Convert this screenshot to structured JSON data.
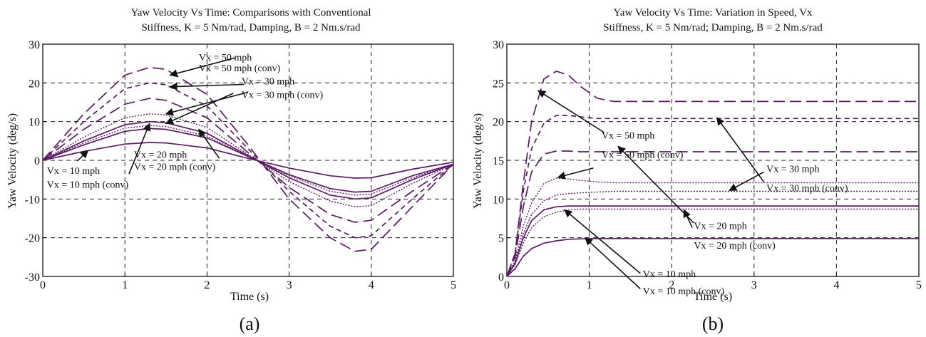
{
  "panels": [
    {
      "label": "(a)",
      "title_line1": "Yaw Velocity Vs Time: Comparisons with Conventional",
      "title_line2": "Stiffness, K = 5 Nm/rad, Damping, B = 2 Nm.s/rad",
      "xlabel": "Time (s)",
      "ylabel": "Yaw Velocity (deg/s)"
    },
    {
      "label": "(b)",
      "title_line1": "Yaw Velocity Vs Time: Variation in Speed, Vx",
      "title_line2": "Stiffness, K = 5 Nm/rad; Damping, B = 2 Nm.s/rad",
      "xlabel": "Time (s)",
      "ylabel": "Yaw Velocity (deg/s)"
    }
  ],
  "chart_data": [
    {
      "type": "line",
      "title": "Yaw Velocity Vs Time: Comparisons with Conventional Stiffness, K = 5 Nm/rad, Damping, B = 2 Nm.s/rad",
      "xlabel": "Time (s)",
      "ylabel": "Yaw Velocity (deg/s)",
      "xlim": [
        0,
        5
      ],
      "ylim": [
        -30,
        30
      ],
      "xticks": [
        0,
        1,
        2,
        3,
        4,
        5
      ],
      "yticks": [
        -30,
        -20,
        -10,
        0,
        10,
        20,
        30
      ],
      "grid": true,
      "color": "#5b1b63",
      "series": [
        {
          "name": "Vx = 50 mph",
          "style": "longdash",
          "x": [
            0,
            0.5,
            1,
            1.3,
            1.5,
            2,
            2.5,
            3,
            3.5,
            3.8,
            4,
            4.5,
            5
          ],
          "y": [
            0,
            12,
            22,
            24,
            23.5,
            17,
            4,
            -10,
            -20,
            -23.5,
            -23,
            -12,
            -1
          ]
        },
        {
          "name": "Vx = 50 mph (conv)",
          "style": "dash",
          "x": [
            0,
            0.5,
            1,
            1.3,
            1.5,
            2,
            2.5,
            3,
            3.5,
            3.8,
            4,
            4.5,
            5
          ],
          "y": [
            0,
            10,
            18.5,
            20,
            19.5,
            14,
            3,
            -8,
            -17,
            -20,
            -19.5,
            -10,
            -1
          ]
        },
        {
          "name": "Vx = 30 mph",
          "style": "longdash",
          "x": [
            0,
            0.5,
            1,
            1.3,
            1.5,
            2,
            2.5,
            3,
            3.5,
            3.8,
            4,
            4.5,
            5
          ],
          "y": [
            0,
            8,
            14.5,
            16,
            15.5,
            11,
            2,
            -7,
            -14,
            -16,
            -15.5,
            -8,
            -1
          ]
        },
        {
          "name": "Vx = 30 mph (conv)",
          "style": "dot",
          "x": [
            0,
            0.5,
            1,
            1.3,
            1.5,
            2,
            2.5,
            3,
            3.5,
            3.8,
            4,
            4.5,
            5
          ],
          "y": [
            0,
            6,
            11,
            12,
            11.7,
            8.5,
            1.5,
            -5.5,
            -10.5,
            -12,
            -11.7,
            -6,
            -1
          ]
        },
        {
          "name": "Vx = 20 mph",
          "style": "solid",
          "x": [
            0,
            0.5,
            1,
            1.3,
            1.5,
            2,
            2.5,
            3,
            3.5,
            3.8,
            4,
            4.5,
            5
          ],
          "y": [
            0,
            5,
            9.2,
            10,
            9.7,
            7,
            1.2,
            -4.5,
            -9,
            -10,
            -9.7,
            -5,
            -1
          ]
        },
        {
          "name": "Vx = 20 mph (conv)",
          "style": "dot",
          "x": [
            0,
            0.5,
            1,
            1.3,
            1.5,
            2,
            2.5,
            3,
            3.5,
            3.8,
            4,
            4.5,
            5
          ],
          "y": [
            0,
            4.5,
            8.3,
            9,
            8.7,
            6.3,
            1,
            -4,
            -8,
            -9,
            -8.7,
            -4.5,
            -1
          ]
        },
        {
          "name": "Vx = 10 mph",
          "style": "solid",
          "x": [
            0,
            0.5,
            1,
            1.3,
            1.5,
            2,
            2.5,
            3,
            3.5,
            3.8,
            4,
            4.5,
            5
          ],
          "y": [
            0,
            4,
            7.5,
            8.2,
            8,
            5.8,
            1,
            -3.7,
            -7.3,
            -8.2,
            -8,
            -4,
            -1
          ]
        },
        {
          "name": "Vx = 10 mph (conv)",
          "style": "solid",
          "x": [
            0,
            0.5,
            1,
            1.3,
            1.5,
            2,
            2.5,
            3,
            3.5,
            3.8,
            4,
            4.5,
            5
          ],
          "y": [
            0,
            2.3,
            4.2,
            4.6,
            4.5,
            3.2,
            0.5,
            -2,
            -4,
            -4.6,
            -4.5,
            -2.3,
            -0.5
          ]
        }
      ],
      "annotations": [
        {
          "text": "Vx = 50 mph",
          "tx": 1.9,
          "ty": 25.8
        },
        {
          "text": "Vx = 50 mph (conv)",
          "tx": 1.9,
          "ty": 23.0,
          "arrow_from": [
            2.35,
            26.5
          ],
          "arrow_to": [
            1.55,
            22
          ]
        },
        {
          "text": "Vx = 30 mph",
          "tx": 2.42,
          "ty": 19.6,
          "arrow_from": [
            2.5,
            17.6
          ],
          "arrow_to": [
            1.5,
            12
          ]
        },
        {
          "text": "Vx = 30 mph (conv)",
          "tx": 2.42,
          "ty": 16.1,
          "arrow_from": [
            2.45,
            19.6
          ],
          "arrow_to": [
            1.55,
            19
          ]
        },
        {
          "text": "Vx = 20 mph",
          "tx": 1.11,
          "ty": 0.6,
          "arrow_from": [
            2.32,
            17.3
          ],
          "arrow_to": [
            1.5,
            9.5
          ]
        },
        {
          "text": "Vx = 20 mph (conv)",
          "tx": 1.11,
          "ty": -2.5,
          "arrow_from": [
            1.05,
            -3.5
          ],
          "arrow_to": [
            1.3,
            9.5
          ]
        },
        {
          "text": "Vx = 10 mph",
          "tx": 0.05,
          "ty": -3.5,
          "arrow_from": [
            2.15,
            0.5
          ],
          "arrow_to": [
            1.9,
            8
          ]
        },
        {
          "text": "Vx = 10 mph (conv)",
          "tx": 0.05,
          "ty": -7.1,
          "arrow_from": [
            0.42,
            -0.2
          ],
          "arrow_to": [
            0.55,
            2.5
          ]
        }
      ]
    },
    {
      "type": "line",
      "title": "Yaw Velocity Vs Time: Variation in Speed, Vx Stiffness, K = 5 Nm/rad; Damping, B = 2 Nm.s/rad",
      "xlabel": "Time (s)",
      "ylabel": "Yaw Velocity (deg/s)",
      "xlim": [
        0,
        5
      ],
      "ylim": [
        0,
        30
      ],
      "xticks": [
        0,
        1,
        2,
        3,
        4,
        5
      ],
      "yticks": [
        0,
        5,
        10,
        15,
        20,
        25,
        30
      ],
      "grid": true,
      "color": "#5b1b63",
      "series": [
        {
          "name": "Vx = 50 mph",
          "style": "longdash",
          "x": [
            0,
            0.1,
            0.2,
            0.3,
            0.45,
            0.6,
            0.75,
            0.9,
            1.1,
            1.3,
            1.6,
            2,
            3,
            4,
            5
          ],
          "y": [
            0,
            3,
            12,
            20,
            25.5,
            26.5,
            26,
            24.5,
            23,
            22.6,
            22.6,
            22.6,
            22.6,
            22.6,
            22.6
          ]
        },
        {
          "name": "Vx = 50 mph (conv)",
          "style": "dash",
          "x": [
            0,
            0.1,
            0.2,
            0.3,
            0.45,
            0.6,
            0.75,
            0.9,
            1.1,
            1.3,
            1.6,
            2,
            3,
            4,
            5
          ],
          "y": [
            0,
            3,
            11,
            16.5,
            19.8,
            20.8,
            20.8,
            20.6,
            20.4,
            20.4,
            20.4,
            20.4,
            20.4,
            20.4,
            20.4
          ]
        },
        {
          "name": "Vx = 30 mph",
          "style": "longdash",
          "x": [
            0,
            0.1,
            0.2,
            0.3,
            0.45,
            0.6,
            0.75,
            0.9,
            1.1,
            1.3,
            1.6,
            2,
            3,
            4,
            5
          ],
          "y": [
            0,
            2.5,
            9,
            13.5,
            15.8,
            16.2,
            16.2,
            16.1,
            16.1,
            16.1,
            16.1,
            16.1,
            16.1,
            16.1,
            16.1
          ]
        },
        {
          "name": "Vx = 30 mph (conv)",
          "style": "dot",
          "x": [
            0,
            0.1,
            0.2,
            0.3,
            0.45,
            0.6,
            0.75,
            0.9,
            1.1,
            1.3,
            1.6,
            2,
            3,
            4,
            5
          ],
          "y": [
            0,
            2,
            6.5,
            9.5,
            12,
            12.7,
            12.6,
            12.4,
            12.2,
            12.1,
            12.1,
            12.1,
            12.1,
            12.1,
            12.1
          ]
        },
        {
          "name": "Vx = 20 mph",
          "style": "dot",
          "x": [
            0,
            0.1,
            0.2,
            0.3,
            0.45,
            0.6,
            0.75,
            0.9,
            1.1,
            1.3,
            1.6,
            2,
            3,
            4,
            5
          ],
          "y": [
            0,
            1.8,
            5.5,
            8,
            9.8,
            10.5,
            10.7,
            10.8,
            10.9,
            11,
            11,
            11,
            11,
            11,
            11
          ]
        },
        {
          "name": "Vx = 20 mph (conv)",
          "style": "solid",
          "x": [
            0,
            0.1,
            0.2,
            0.3,
            0.45,
            0.6,
            0.75,
            0.9,
            1.1,
            1.3,
            1.6,
            2,
            3,
            4,
            5
          ],
          "y": [
            0,
            1.7,
            5,
            7.2,
            8.6,
            9,
            9.1,
            9.1,
            9.1,
            9.1,
            9.1,
            9.1,
            9.1,
            9.1,
            9.1
          ]
        },
        {
          "name": "Vx = 10 mph",
          "style": "dot",
          "x": [
            0,
            0.1,
            0.2,
            0.3,
            0.45,
            0.6,
            0.75,
            0.9,
            1.1,
            1.3,
            1.6,
            2,
            3,
            4,
            5
          ],
          "y": [
            0,
            1.5,
            4.3,
            6.3,
            7.7,
            8.3,
            8.6,
            8.7,
            8.7,
            8.7,
            8.7,
            8.7,
            8.7,
            8.7,
            8.7
          ]
        },
        {
          "name": "Vx = 10 mph (conv)",
          "style": "solid",
          "x": [
            0,
            0.1,
            0.2,
            0.3,
            0.45,
            0.6,
            0.75,
            0.9,
            1.1,
            1.3,
            1.6,
            2,
            3,
            4,
            5
          ],
          "y": [
            0,
            1,
            2.6,
            3.6,
            4.3,
            4.6,
            4.8,
            4.85,
            4.9,
            4.9,
            4.9,
            4.9,
            4.9,
            4.9,
            4.9
          ]
        }
      ],
      "annotations": [
        {
          "text": "Vx = 50 mph",
          "tx": 1.15,
          "ty": 17.8,
          "arrow_from": [
            1.18,
            18.6
          ],
          "arrow_to": [
            0.38,
            24
          ]
        },
        {
          "text": "Vx = 50 mph (conv)",
          "tx": 1.15,
          "ty": 15.3,
          "arrow_from": [
            1.05,
            14
          ],
          "arrow_to": [
            0.62,
            12.8
          ]
        },
        {
          "text": "Vx = 30 mph",
          "tx": 3.15,
          "ty": 13.5,
          "arrow_from": [
            3.12,
            12.2
          ],
          "arrow_to": [
            2.55,
            20.5
          ]
        },
        {
          "text": "Vx = 30 mph (conv)",
          "tx": 3.15,
          "ty": 11.0,
          "arrow_from": [
            3.12,
            13.5
          ],
          "arrow_to": [
            2.7,
            11.1
          ]
        },
        {
          "text": "Vx = 20 mph",
          "tx": 2.27,
          "ty": 6.1,
          "arrow_from": [
            2.27,
            6.9
          ],
          "arrow_to": [
            1.35,
            16.8
          ]
        },
        {
          "text": "Vx = 20 mph (conv)",
          "tx": 2.27,
          "ty": 3.6,
          "arrow_from": [
            2.25,
            6.3
          ],
          "arrow_to": [
            2.15,
            8.6
          ]
        },
        {
          "text": "Vx = 10 mph",
          "tx": 1.65,
          "ty": -0.1,
          "arrow_from": [
            1.62,
            0.4
          ],
          "arrow_to": [
            0.7,
            8.6
          ]
        },
        {
          "text": "Vx = 10 mph (conv)",
          "tx": 1.65,
          "ty": -2.3,
          "arrow_from": [
            1.62,
            -1.6
          ],
          "arrow_to": [
            0.95,
            5
          ]
        }
      ]
    }
  ]
}
